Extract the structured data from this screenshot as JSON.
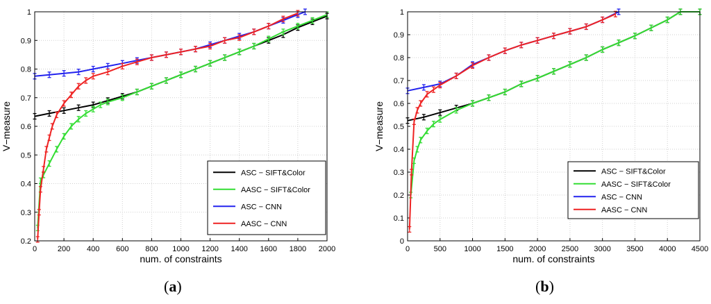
{
  "chart_data": [
    {
      "type": "line",
      "panel_label": "a",
      "xlabel": "num. of constraints",
      "ylabel": "V−measure",
      "xlim": [
        0,
        2000
      ],
      "ylim": [
        0.2,
        1.0
      ],
      "xticks": [
        "0",
        "200",
        "400",
        "600",
        "800",
        "1000",
        "1200",
        "1400",
        "1600",
        "1800",
        "2000"
      ],
      "yticks": [
        "0.2",
        "0.3",
        "0.4",
        "0.5",
        "0.6",
        "0.7",
        "0.8",
        "0.9",
        "1"
      ],
      "legend_position": "right",
      "series": [
        {
          "name": "ASC − SIFT&Color",
          "color": "#000000",
          "x": [
            0,
            100,
            200,
            300,
            400,
            500,
            600,
            700,
            800,
            900,
            1000,
            1100,
            1200,
            1300,
            1400,
            1500,
            1600,
            1700,
            1800,
            1900,
            2000
          ],
          "y": [
            0.635,
            0.645,
            0.655,
            0.665,
            0.675,
            0.69,
            0.705,
            0.72,
            0.74,
            0.76,
            0.78,
            0.8,
            0.82,
            0.84,
            0.86,
            0.88,
            0.9,
            0.92,
            0.945,
            0.965,
            0.985
          ]
        },
        {
          "name": "AASC − SIFT&Color",
          "color": "#33dd33",
          "x": [
            20,
            40,
            60,
            100,
            150,
            200,
            250,
            300,
            350,
            400,
            450,
            500,
            600,
            700,
            800,
            900,
            1000,
            1100,
            1200,
            1300,
            1400,
            1500,
            1600,
            1700,
            1800,
            1900,
            2000
          ],
          "y": [
            0.245,
            0.41,
            0.43,
            0.47,
            0.52,
            0.565,
            0.6,
            0.625,
            0.645,
            0.66,
            0.675,
            0.685,
            0.7,
            0.72,
            0.74,
            0.76,
            0.78,
            0.8,
            0.82,
            0.84,
            0.86,
            0.88,
            0.905,
            0.93,
            0.95,
            0.97,
            0.99
          ]
        },
        {
          "name": "ASC − CNN",
          "color": "#2222ee",
          "x": [
            0,
            100,
            200,
            300,
            400,
            500,
            600,
            700,
            800,
            900,
            1000,
            1100,
            1200,
            1300,
            1400,
            1500,
            1600,
            1700,
            1800,
            1850
          ],
          "y": [
            0.775,
            0.78,
            0.785,
            0.79,
            0.8,
            0.81,
            0.82,
            0.83,
            0.84,
            0.85,
            0.86,
            0.87,
            0.885,
            0.9,
            0.915,
            0.93,
            0.95,
            0.97,
            0.99,
            1.0
          ]
        },
        {
          "name": "AASC − CNN",
          "color": "#ee2222",
          "x": [
            20,
            30,
            40,
            60,
            80,
            100,
            120,
            150,
            200,
            250,
            300,
            350,
            400,
            500,
            600,
            700,
            800,
            900,
            1000,
            1100,
            1200,
            1300,
            1400,
            1500,
            1600,
            1700,
            1800
          ],
          "y": [
            0.205,
            0.3,
            0.38,
            0.45,
            0.52,
            0.56,
            0.6,
            0.64,
            0.68,
            0.71,
            0.74,
            0.76,
            0.775,
            0.79,
            0.81,
            0.825,
            0.84,
            0.85,
            0.86,
            0.87,
            0.88,
            0.9,
            0.91,
            0.93,
            0.95,
            0.975,
            0.995
          ]
        }
      ]
    },
    {
      "type": "line",
      "panel_label": "b",
      "xlabel": "num. of constraints",
      "ylabel": "V−measure",
      "xlim": [
        0,
        4500
      ],
      "ylim": [
        0,
        1.0
      ],
      "xticks": [
        "0",
        "500",
        "1000",
        "1500",
        "2000",
        "2500",
        "3000",
        "3500",
        "4000",
        "4500"
      ],
      "yticks": [
        "0",
        "0.1",
        "0.2",
        "0.3",
        "0.4",
        "0.5",
        "0.6",
        "0.7",
        "0.8",
        "0.9",
        "1"
      ],
      "legend_position": "bottom-right",
      "series": [
        {
          "name": "ASC − SIFT&Color",
          "color": "#000000",
          "x": [
            0,
            250,
            500,
            750,
            1000,
            1250,
            1500,
            1750,
            2000,
            2250,
            2500,
            2750,
            3000,
            3250,
            3500,
            3750,
            4000,
            4200,
            4500
          ],
          "y": [
            0.525,
            0.54,
            0.56,
            0.58,
            0.6,
            0.625,
            0.65,
            0.685,
            0.71,
            0.74,
            0.77,
            0.8,
            0.835,
            0.865,
            0.895,
            0.93,
            0.965,
            1.0,
            1.0
          ]
        },
        {
          "name": "AASC − SIFT&Color",
          "color": "#33dd33",
          "x": [
            50,
            100,
            150,
            200,
            300,
            400,
            500,
            750,
            1000,
            1250,
            1500,
            1750,
            2000,
            2250,
            2500,
            2750,
            3000,
            3250,
            3500,
            3750,
            4000,
            4200,
            4500
          ],
          "y": [
            0.2,
            0.35,
            0.4,
            0.44,
            0.48,
            0.51,
            0.53,
            0.57,
            0.6,
            0.625,
            0.65,
            0.685,
            0.71,
            0.74,
            0.77,
            0.8,
            0.835,
            0.865,
            0.895,
            0.93,
            0.965,
            1.0,
            1.0
          ]
        },
        {
          "name": "ASC − CNN",
          "color": "#2222ee",
          "x": [
            0,
            250,
            500,
            750,
            1000,
            1250,
            1500,
            1750,
            2000,
            2250,
            2500,
            2750,
            3000,
            3250
          ],
          "y": [
            0.655,
            0.67,
            0.685,
            0.72,
            0.77,
            0.8,
            0.83,
            0.855,
            0.875,
            0.895,
            0.915,
            0.935,
            0.965,
            1.0
          ]
        },
        {
          "name": "AASC − CNN",
          "color": "#ee2222",
          "x": [
            30,
            60,
            100,
            150,
            200,
            300,
            400,
            500,
            750,
            1000,
            1250,
            1500,
            1750,
            2000,
            2250,
            2500,
            2750,
            3000,
            3200
          ],
          "y": [
            0.05,
            0.3,
            0.52,
            0.57,
            0.6,
            0.64,
            0.66,
            0.68,
            0.72,
            0.765,
            0.8,
            0.83,
            0.855,
            0.875,
            0.895,
            0.915,
            0.935,
            0.965,
            0.99
          ]
        }
      ]
    }
  ],
  "captions": {
    "a": "a",
    "b": "b"
  }
}
